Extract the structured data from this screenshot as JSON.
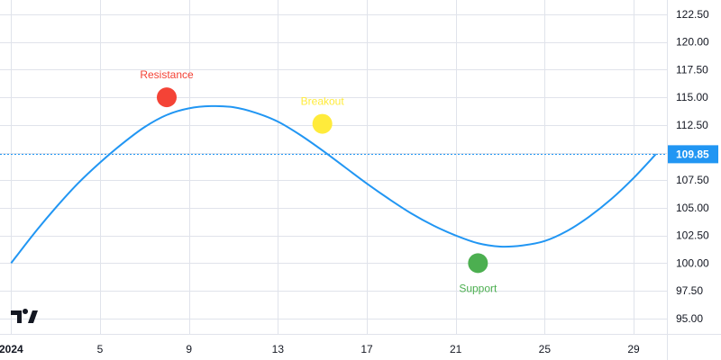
{
  "chart_data": {
    "type": "line",
    "x_start_label": "2024",
    "x_ticks": [
      {
        "day": 1,
        "label": "2024"
      },
      {
        "day": 5,
        "label": "5"
      },
      {
        "day": 9,
        "label": "9"
      },
      {
        "day": 13,
        "label": "13"
      },
      {
        "day": 17,
        "label": "17"
      },
      {
        "day": 21,
        "label": "21"
      },
      {
        "day": 25,
        "label": "25"
      },
      {
        "day": 29,
        "label": "29"
      }
    ],
    "y_ticks": [
      "95.00",
      "97.50",
      "100.00",
      "102.50",
      "105.00",
      "107.50",
      "110.00",
      "112.50",
      "115.00",
      "117.50",
      "120.00",
      "122.50"
    ],
    "ylim": [
      93.6,
      123.8
    ],
    "xlim": [
      0.5,
      30.5
    ],
    "series": [
      {
        "color": "#2196f3",
        "x": [
          1,
          2,
          3,
          4,
          5,
          6,
          7,
          8,
          9,
          10,
          11,
          12,
          13,
          14,
          15,
          16,
          17,
          18,
          19,
          20,
          21,
          22,
          23,
          24,
          25,
          26,
          27,
          28,
          29,
          30
        ],
        "values": [
          100.0,
          102.6,
          105.0,
          107.2,
          109.1,
          110.8,
          112.3,
          113.4,
          114.0,
          114.2,
          114.1,
          113.6,
          112.8,
          111.6,
          110.2,
          108.7,
          107.2,
          105.8,
          104.5,
          103.4,
          102.5,
          101.8,
          101.5,
          101.6,
          102.0,
          102.9,
          104.2,
          105.8,
          107.7,
          109.85
        ]
      }
    ],
    "last_price": {
      "value": 109.85,
      "label": "109.85",
      "color": "#2196f3"
    },
    "annotations": [
      {
        "label": "Resistance",
        "day": 8,
        "value": 115.0,
        "color": "#f44336",
        "label_position": "above"
      },
      {
        "label": "Breakout",
        "day": 15,
        "value": 112.6,
        "color": "#ffeb3b",
        "label_position": "above"
      },
      {
        "label": "Support",
        "day": 22,
        "value": 100.0,
        "color": "#4caf50",
        "label_position": "below"
      }
    ],
    "grid": true,
    "legend": "none"
  },
  "logo": {
    "icon": "tradingview-logo-icon",
    "color": "#131722"
  }
}
